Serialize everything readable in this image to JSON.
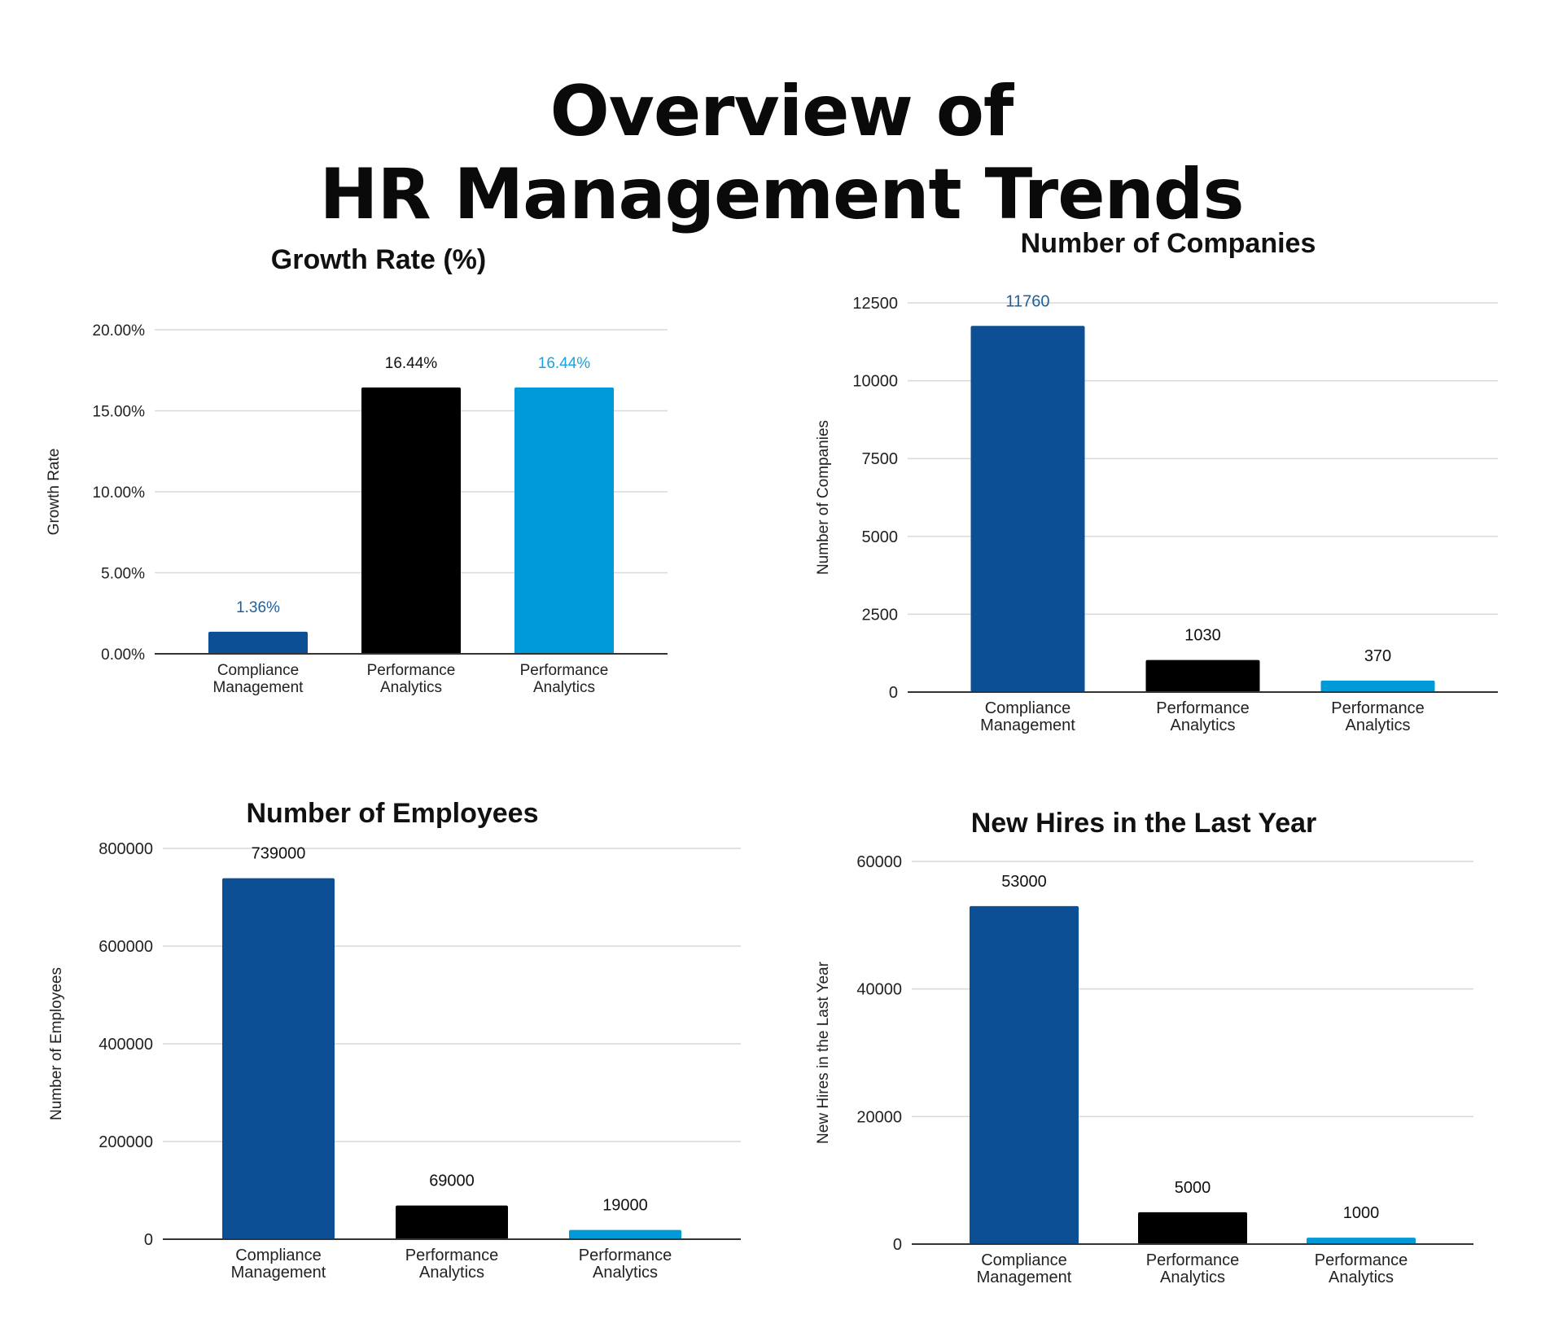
{
  "page": {
    "title_line_1": "Overview of",
    "title_line_2": "HR Management Trends"
  },
  "colors": {
    "dark_blue": "#0d4f94",
    "black": "#000000",
    "light_blue": "#019ad8",
    "grid": "#d9d9d9",
    "axis": "#333333",
    "label_dark": "#111111",
    "label_blue": "#1f5f99",
    "label_light_blue": "#1aa3dc"
  },
  "chart_data": [
    {
      "type": "bar",
      "title": "Growth Rate (%)",
      "xlabel": "",
      "ylabel": "Growth Rate",
      "categories": [
        "Compliance Management",
        "Performance Analytics",
        "Performance Analytics"
      ],
      "values": [
        1.36,
        16.44,
        16.44
      ],
      "data_labels": [
        "1.36%",
        "16.44%",
        "16.44%"
      ],
      "yticks": [
        "0.00%",
        "5.00%",
        "10.00%",
        "15.00%",
        "20.00%"
      ],
      "ytick_values": [
        0,
        5,
        10,
        15,
        20
      ],
      "ylim": [
        0,
        20
      ],
      "grid": true,
      "bar_colors": [
        "#0d4f94",
        "#000000",
        "#019ad8"
      ],
      "label_colors": [
        "#1f5f99",
        "#111111",
        "#1aa3dc"
      ]
    },
    {
      "type": "bar",
      "title": "Number of Companies",
      "xlabel": "",
      "ylabel": "Number of Companies",
      "categories": [
        "Compliance Management",
        "Performance Analytics",
        "Performance Analytics"
      ],
      "values": [
        11760,
        1030,
        370
      ],
      "data_labels": [
        "11760",
        "1030",
        "370"
      ],
      "yticks": [
        "0",
        "2500",
        "5000",
        "7500",
        "10000",
        "12500"
      ],
      "ytick_values": [
        0,
        2500,
        5000,
        7500,
        10000,
        12500
      ],
      "ylim": [
        0,
        12500
      ],
      "grid": true,
      "bar_colors": [
        "#0d4f94",
        "#000000",
        "#019ad8"
      ],
      "label_colors": [
        "#1f5f99",
        "#111111",
        "#111111"
      ]
    },
    {
      "type": "bar",
      "title": "Number of Employees",
      "xlabel": "",
      "ylabel": "Number of Employees",
      "categories": [
        "Compliance Management",
        "Performance Analytics",
        "Performance Analytics"
      ],
      "values": [
        739000,
        69000,
        19000
      ],
      "data_labels": [
        "739000",
        "69000",
        "19000"
      ],
      "yticks": [
        "0",
        "200000",
        "400000",
        "600000",
        "800000"
      ],
      "ytick_values": [
        0,
        200000,
        400000,
        600000,
        800000
      ],
      "ylim": [
        0,
        800000
      ],
      "grid": true,
      "bar_colors": [
        "#0d4f94",
        "#000000",
        "#019ad8"
      ],
      "label_colors": [
        "#111111",
        "#111111",
        "#111111"
      ]
    },
    {
      "type": "bar",
      "title": "New Hires in the Last Year",
      "xlabel": "",
      "ylabel": "New Hires in the Last Year",
      "categories": [
        "Compliance Management",
        "Performance Analytics",
        "Performance Analytics"
      ],
      "values": [
        53000,
        5000,
        1000
      ],
      "data_labels": [
        "53000",
        "5000",
        "1000"
      ],
      "yticks": [
        "0",
        "20000",
        "40000",
        "60000"
      ],
      "ytick_values": [
        0,
        20000,
        40000,
        60000
      ],
      "ylim": [
        0,
        60000
      ],
      "grid": true,
      "bar_colors": [
        "#0d4f94",
        "#000000",
        "#019ad8"
      ],
      "label_colors": [
        "#111111",
        "#111111",
        "#111111"
      ]
    }
  ]
}
